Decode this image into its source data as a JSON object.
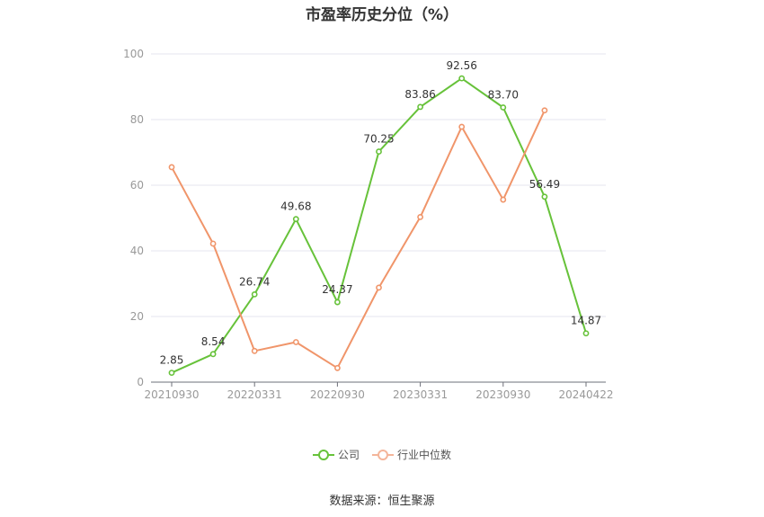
{
  "chart_data": {
    "type": "line",
    "title": "市盈率历史分位（%）",
    "x_tick_labels": [
      "20210930",
      "20220331",
      "20220930",
      "20230331",
      "20230930",
      "20240422"
    ],
    "x_count": 11,
    "ylim": [
      0,
      100
    ],
    "y_ticks": [
      0,
      20,
      40,
      60,
      80,
      100
    ],
    "grid": true,
    "legend_position": "bottom",
    "series": [
      {
        "name": "公司",
        "color": "#67c23a",
        "show_labels": true,
        "values": [
          2.85,
          8.54,
          26.74,
          49.68,
          24.37,
          70.25,
          83.86,
          92.56,
          83.7,
          56.49,
          14.87
        ],
        "labels": [
          "2.85",
          "8.54",
          "26.74",
          "49.68",
          "24.37",
          "70.25",
          "83.86",
          "92.56",
          "83.70",
          "56.49",
          "14.87"
        ]
      },
      {
        "name": "行业中位数",
        "color": "#f0956a",
        "show_labels": false,
        "values": [
          65.5,
          42.2,
          9.5,
          12.2,
          4.3,
          28.8,
          50.3,
          77.8,
          55.6,
          82.8,
          null
        ]
      }
    ]
  },
  "source_text": "数据来源：恒生聚源"
}
